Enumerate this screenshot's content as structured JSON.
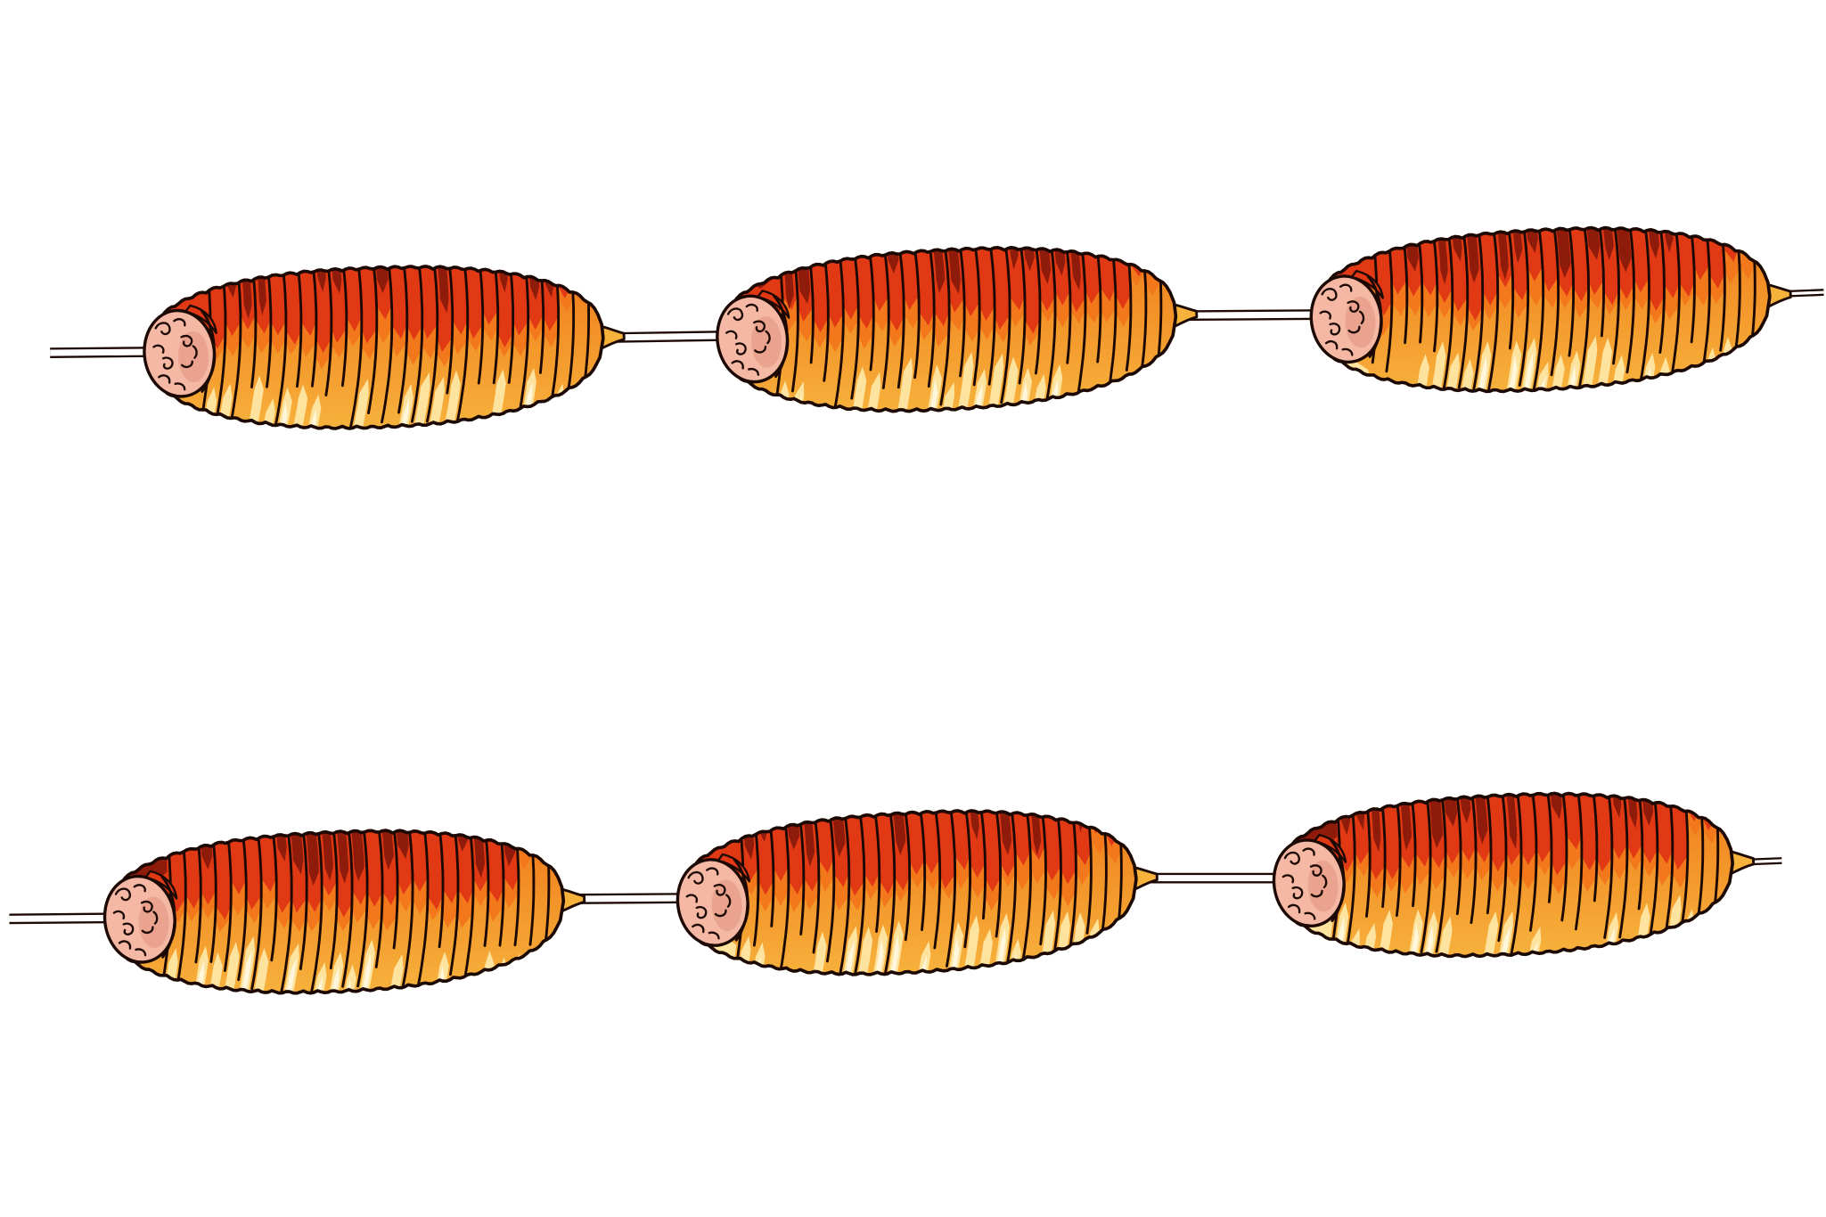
{
  "colors": {
    "background": "#ffffff",
    "outline": "#1c0903",
    "skewer": "#ffffff",
    "char_dark": "#8f1b0b",
    "char_red": "#e23915",
    "crust_orange": "#f2781b",
    "crust_mid": "#f3962a",
    "crust_gold": "#f7b23c",
    "highlight": "#fde39e",
    "highlight_bright": "#fff6dc",
    "meat_pink": "#f4b8a4",
    "meat_shade": "#e0917c"
  }
}
